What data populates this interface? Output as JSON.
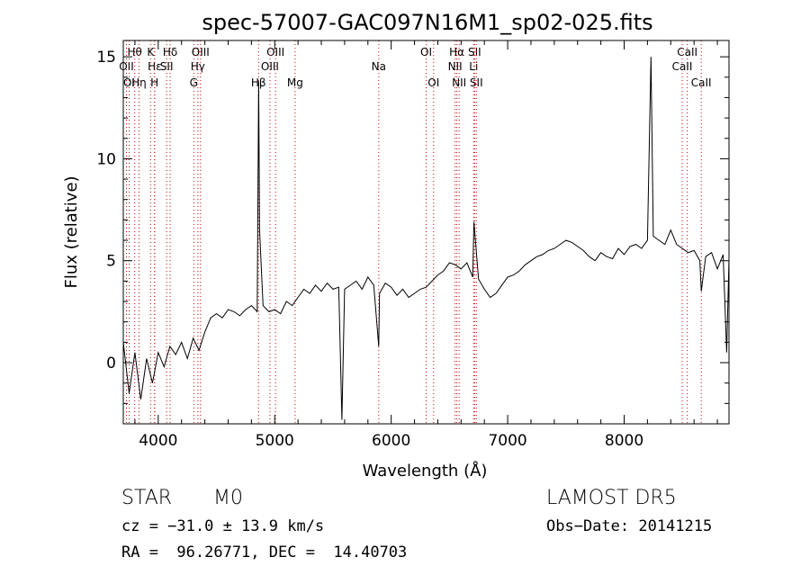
{
  "chart_data": {
    "type": "line",
    "title": "spec-57007-GAC097N16M1_sp02-025.fits",
    "xlabel": "Wavelength (Å)",
    "ylabel": "Flux (relative)",
    "xlim": [
      3700,
      8900
    ],
    "ylim": [
      -3,
      15.8
    ],
    "xticks": [
      4000,
      5000,
      6000,
      7000,
      8000
    ],
    "yticks": [
      0,
      5,
      10,
      15
    ],
    "grid": false,
    "legend": "none",
    "series": [
      {
        "x": [
          3700,
          3750,
          3800,
          3850,
          3900,
          3950,
          4000,
          4050,
          4100,
          4150,
          4200,
          4250,
          4300,
          4350,
          4400,
          4450,
          4500,
          4550,
          4600,
          4650,
          4700,
          4750,
          4800,
          4850,
          4862,
          4870,
          4900,
          4950,
          5000,
          5050,
          5100,
          5150,
          5200,
          5250,
          5300,
          5350,
          5400,
          5450,
          5500,
          5550,
          5577,
          5600,
          5650,
          5700,
          5750,
          5800,
          5850,
          5893,
          5900,
          5950,
          6000,
          6050,
          6100,
          6150,
          6200,
          6250,
          6300,
          6350,
          6400,
          6450,
          6500,
          6550,
          6600,
          6650,
          6700,
          6710,
          6750,
          6800,
          6850,
          6900,
          6950,
          7000,
          7050,
          7100,
          7150,
          7200,
          7250,
          7300,
          7350,
          7400,
          7450,
          7500,
          7550,
          7600,
          7650,
          7700,
          7750,
          7800,
          7850,
          7900,
          7950,
          8000,
          8050,
          8100,
          8150,
          8200,
          8230,
          8250,
          8300,
          8350,
          8400,
          8450,
          8500,
          8550,
          8600,
          8650,
          8662,
          8700,
          8750,
          8800,
          8850,
          8880,
          8900
        ],
        "y": [
          1.0,
          -1.5,
          0.5,
          -1.8,
          0.2,
          -1.0,
          0.5,
          -0.2,
          0.8,
          0.4,
          1.0,
          0.2,
          1.2,
          0.6,
          1.5,
          2.2,
          2.4,
          2.2,
          2.6,
          2.5,
          2.3,
          2.6,
          2.8,
          2.5,
          13.8,
          6.5,
          2.8,
          2.5,
          2.6,
          2.4,
          3.0,
          2.8,
          3.2,
          3.6,
          3.4,
          3.8,
          3.5,
          3.9,
          3.6,
          3.7,
          -2.8,
          3.6,
          3.8,
          4.0,
          3.6,
          4.2,
          3.8,
          0.8,
          3.4,
          3.9,
          3.7,
          3.3,
          3.6,
          3.2,
          3.4,
          3.6,
          3.7,
          4.0,
          4.3,
          4.5,
          4.9,
          4.8,
          4.6,
          4.9,
          4.2,
          6.9,
          4.1,
          3.6,
          3.2,
          3.4,
          3.8,
          4.2,
          4.3,
          4.5,
          4.8,
          5.0,
          5.2,
          5.3,
          5.5,
          5.6,
          5.8,
          6.0,
          5.9,
          5.7,
          5.5,
          5.2,
          5.0,
          5.4,
          5.2,
          5.1,
          5.6,
          5.3,
          5.7,
          5.8,
          5.6,
          6.0,
          15.0,
          6.2,
          6.0,
          5.8,
          6.5,
          5.8,
          5.6,
          5.4,
          5.5,
          5.0,
          3.5,
          5.2,
          5.4,
          4.6,
          5.3,
          0.5,
          5.1
        ]
      }
    ],
    "line_markers": [
      {
        "label": "Hθ",
        "x": 3798,
        "row": 1
      },
      {
        "label": "OII",
        "x": 3727,
        "row": 2
      },
      {
        "label": "OI",
        "x": 3750,
        "row": 3
      },
      {
        "label": "Hη",
        "x": 3835,
        "row": 3
      },
      {
        "label": "K",
        "x": 3934,
        "row": 1
      },
      {
        "label": "Hε",
        "x": 3970,
        "row": 2
      },
      {
        "label": "H",
        "x": 3968,
        "row": 3
      },
      {
        "label": "Hδ",
        "x": 4102,
        "row": 1
      },
      {
        "label": "SII",
        "x": 4072,
        "row": 2
      },
      {
        "label": "OIII",
        "x": 4363,
        "row": 1
      },
      {
        "label": "Hγ",
        "x": 4340,
        "row": 2
      },
      {
        "label": "G",
        "x": 4305,
        "row": 3
      },
      {
        "label": "Hβ",
        "x": 4861,
        "row": 3
      },
      {
        "label": "OIII",
        "x": 5007,
        "row": 1
      },
      {
        "label": "OIII",
        "x": 4959,
        "row": 2
      },
      {
        "label": "Mg",
        "x": 5175,
        "row": 3
      },
      {
        "label": "Na",
        "x": 5893,
        "row": 2
      },
      {
        "label": "OI",
        "x": 6300,
        "row": 1
      },
      {
        "label": "OI",
        "x": 6364,
        "row": 3
      },
      {
        "label": "Hα",
        "x": 6563,
        "row": 1
      },
      {
        "label": "NII",
        "x": 6548,
        "row": 2
      },
      {
        "label": "NII",
        "x": 6583,
        "row": 3
      },
      {
        "label": "SII",
        "x": 6716,
        "row": 1
      },
      {
        "label": "Li",
        "x": 6708,
        "row": 2
      },
      {
        "label": "SII",
        "x": 6731,
        "row": 3
      },
      {
        "label": "CaII",
        "x": 8542,
        "row": 1
      },
      {
        "label": "CaII",
        "x": 8498,
        "row": 2
      },
      {
        "label": "CaII",
        "x": 8662,
        "row": 3
      }
    ],
    "line_color": "#000000",
    "marker_color": "#cc0000"
  },
  "info": {
    "object_class": "STAR",
    "subclass": "M0",
    "survey": "LAMOST DR5",
    "redshift": "cz = −31.0 ± 13.9 km/s",
    "obs_date": "Obs−Date: 20141215",
    "coords": "RA =  96.26771, DEC =  14.40703"
  }
}
